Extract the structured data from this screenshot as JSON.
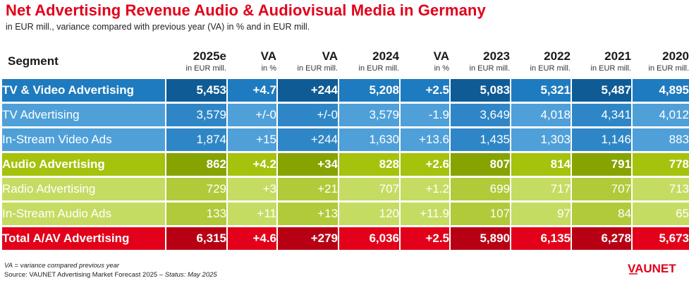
{
  "title": "Net Advertising Revenue Audio & Audiovisual Media in Germany",
  "subtitle": "in EUR mill., variance compared with previous year (VA) in % and in EUR mill.",
  "footnote": "VA = variance compared previous year",
  "source_prefix": "Source: VAUNET Advertising Market Forecast 2025 – ",
  "source_status": "Status: May 2025",
  "logo_text": "VAUNET",
  "colors": {
    "title": "#e2001a",
    "tv": "#1f7bbf",
    "audio": "#a5c20c",
    "total": "#e2001a"
  },
  "chart_data": {
    "type": "table",
    "columns": [
      {
        "label": "Segment",
        "unit": ""
      },
      {
        "label": "2025e",
        "unit": "in EUR mill."
      },
      {
        "label": "VA",
        "unit": "in %"
      },
      {
        "label": "VA",
        "unit": "in EUR mill."
      },
      {
        "label": "2024",
        "unit": "in EUR mill."
      },
      {
        "label": "VA",
        "unit": "in %"
      },
      {
        "label": "2023",
        "unit": "in EUR mill."
      },
      {
        "label": "2022",
        "unit": "in EUR mill."
      },
      {
        "label": "2021",
        "unit": "in EUR mill."
      },
      {
        "label": "2020",
        "unit": "in EUR mill."
      }
    ],
    "rows": [
      {
        "group": "tv",
        "level": "main",
        "cells": [
          "TV & Video Advertising",
          "5,453",
          "+4.7",
          "+244",
          "5,208",
          "+2.5",
          "5,083",
          "5,321",
          "5,487",
          "4,895"
        ]
      },
      {
        "group": "tv",
        "level": "sub",
        "cells": [
          "TV Advertising",
          "3,579",
          "+/-0",
          "+/-0",
          "3,579",
          "-1.9",
          "3,649",
          "4,018",
          "4,341",
          "4,012"
        ]
      },
      {
        "group": "tv",
        "level": "sub",
        "cells": [
          "In-Stream Video Ads",
          "1,874",
          "+15",
          "+244",
          "1,630",
          "+13.6",
          "1,435",
          "1,303",
          "1,146",
          "883"
        ]
      },
      {
        "group": "au",
        "level": "main",
        "cells": [
          "Audio Advertising",
          "862",
          "+4.2",
          "+34",
          "828",
          "+2.6",
          "807",
          "814",
          "791",
          "778"
        ]
      },
      {
        "group": "au",
        "level": "sub",
        "cells": [
          "Radio Advertising",
          "729",
          "+3",
          "+21",
          "707",
          "+1.2",
          "699",
          "717",
          "707",
          "713"
        ]
      },
      {
        "group": "au",
        "level": "sub",
        "cells": [
          "In-Stream Audio Ads",
          "133",
          "+11",
          "+13",
          "120",
          "+11.9",
          "107",
          "97",
          "84",
          "65"
        ]
      },
      {
        "group": "total",
        "level": "main",
        "cells": [
          "Total A/AV Advertising",
          "6,315",
          "+4.6",
          "+279",
          "6,036",
          "+2.5",
          "5,890",
          "6,135",
          "6,278",
          "5,673"
        ]
      }
    ]
  }
}
